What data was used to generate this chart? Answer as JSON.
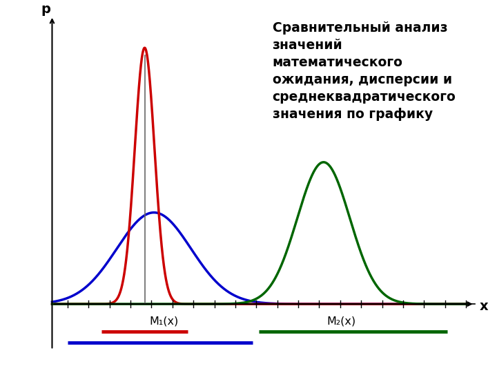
{
  "title": "Сравнительный анализ\nзначений\nматематического\nожидания, дисперсии и\nсреднеквадратического\nзначения по графику",
  "title_fontsize": 13.5,
  "xlabel": "x",
  "ylabel": "p",
  "mu1": 3.0,
  "sigma_red": 0.32,
  "amp_red": 2.8,
  "mu_blue": 3.3,
  "sigma_blue": 1.2,
  "amp_blue": 1.0,
  "mu2": 8.8,
  "sigma_green": 0.85,
  "amp_green": 1.55,
  "red_color": "#cc0000",
  "blue_color": "#0000cc",
  "green_color": "#006600",
  "vline_color": "#666666",
  "label1": "M₁(x)",
  "label2": "M₂(x)",
  "xmin": 0.0,
  "xmax": 13.5,
  "ymin": -0.55,
  "ymax": 3.1,
  "blue_line_xstart": 0.5,
  "blue_line_xend": 6.5,
  "blue_line_y": -0.42,
  "red_line_xstart": 1.6,
  "red_line_xend": 4.4,
  "red_line_y": -0.3,
  "green_line_xstart": 6.7,
  "green_line_xend": 12.8,
  "green_line_y": -0.3
}
